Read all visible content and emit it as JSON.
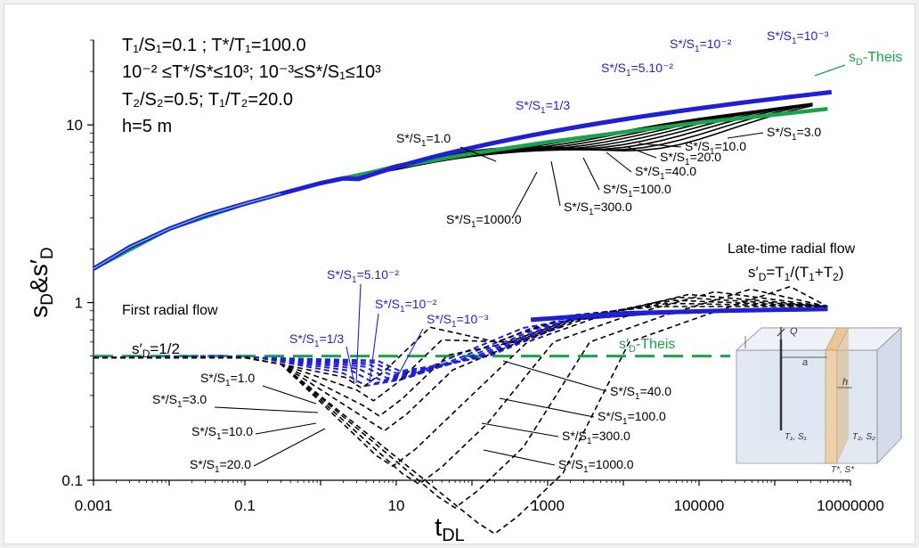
{
  "header": {
    "line1": "T₁/S₁=0.1 ; T*/T₁=100.0",
    "line2": "10⁻² ≤T*/S*≤10³; 10⁻³≤S*/S₁≤10³",
    "line3": "T₂/S₂=0.5; T₁/T₂=20.0",
    "line4": "h=5 m"
  },
  "text": {
    "first_radial": "First radial flow",
    "first_radial_eq": "s′D=1/2",
    "late_time": "Late-time radial flow",
    "late_time_eq": "s′D=T1/(T1+T2)",
    "sd_theis": "sD-Theis",
    "sdp_theis": "s′D-Theis"
  },
  "colors": {
    "black": "#000000",
    "blue": "#1f1fd9",
    "green": "#1aa34a",
    "cyan": "#6fd0e8"
  },
  "chart_data": {
    "type": "line",
    "xscale": "log",
    "yscale": "log",
    "xlabel": "tDL",
    "ylabel": "sD&s′D",
    "xlim": [
      0.001,
      10000000
    ],
    "ylim": [
      0.1,
      30
    ],
    "xticks": [
      "0.001",
      "0.1",
      "10",
      "1000",
      "100000",
      "10000000"
    ],
    "yticks": [
      "0.1",
      "1",
      "10"
    ],
    "upper_curves": {
      "theis": {
        "name": "sD-Theis",
        "points": [
          [
            0.001,
            1.55
          ],
          [
            0.01,
            2.6
          ],
          [
            0.1,
            3.6
          ],
          [
            1,
            4.7
          ],
          [
            10,
            5.8
          ],
          [
            100,
            6.9
          ],
          [
            1000,
            8.0
          ],
          [
            10000,
            9.1
          ],
          [
            100000,
            10.3
          ],
          [
            1000000,
            11.4
          ],
          [
            5000000,
            12.3
          ]
        ]
      },
      "blue_reference": "S*/S1=10⁻³",
      "labels_blue": [
        "S*/S₁=10⁻²",
        "S*/S₁=10⁻³",
        "S*/S₁=5.10⁻²",
        "S*/S₁=1/3"
      ],
      "labels_black": [
        "S*/S₁=1.0",
        "S*/S₁=3.0",
        "S*/S₁=10.0",
        "S*/S₁=20.0",
        "S*/S₁=40.0",
        "S*/S₁=100.0",
        "S*/S₁=300.0",
        "S*/S₁=1000.0"
      ]
    },
    "lower_curves": {
      "theis": {
        "name": "s′D-Theis",
        "value": 0.5
      },
      "late_time_value": 0.95,
      "labels_blue": [
        "S*/S₁=5.10⁻²",
        "S*/S₁=10⁻²",
        "S*/S₁=10⁻³",
        "S*/S₁=1/3"
      ],
      "labels_black": [
        "S*/S₁=1.0",
        "S*/S₁=3.0",
        "S*/S₁=10.0",
        "S*/S₁=20.0",
        "S*/S₁=40.0",
        "S*/S₁=100.0",
        "S*/S₁=300.0",
        "S*/S₁=1000.0"
      ]
    },
    "inset_labels": [
      "T₁, S₁",
      "T₂, S₂",
      "T*, S*",
      "Q",
      "a",
      "h"
    ]
  }
}
